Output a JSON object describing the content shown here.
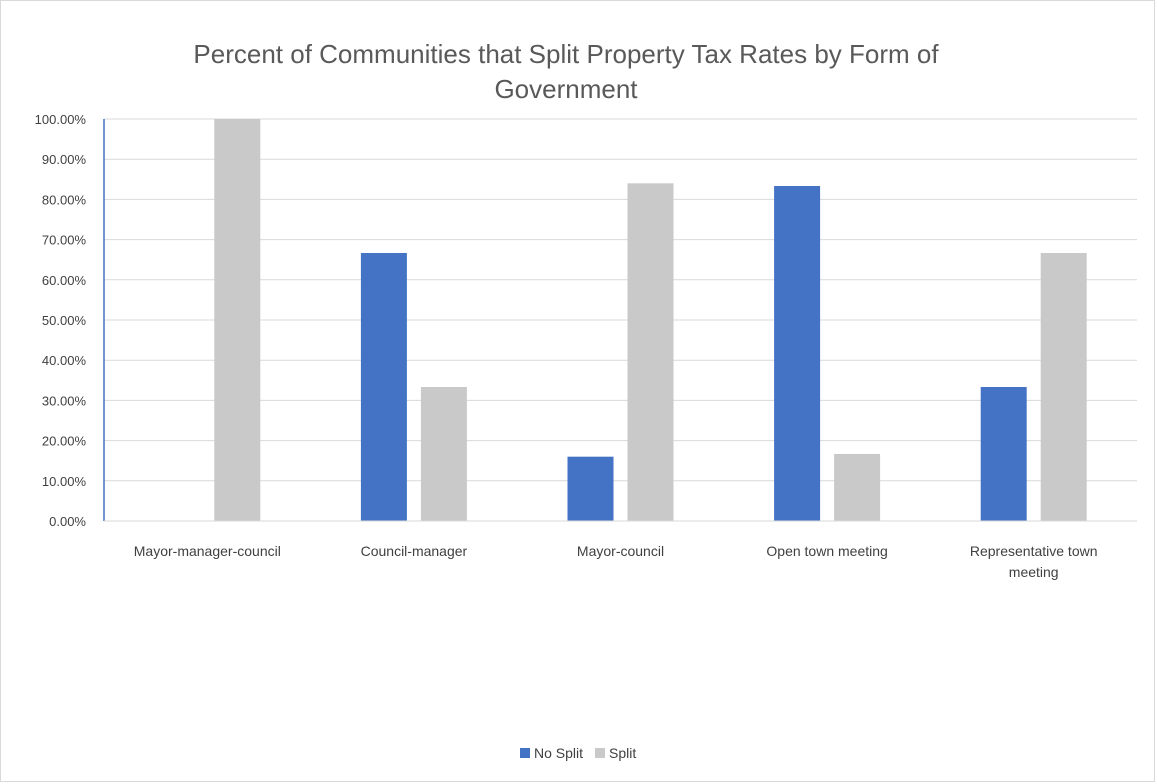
{
  "chart_data": {
    "type": "bar",
    "title": "Percent of Communities that Split Property Tax Rates by Form of Government",
    "title_lines": [
      "Percent of Communities that Split Property Tax Rates by Form of",
      "Government"
    ],
    "categories": [
      "Mayor-manager-council",
      "Council-manager",
      "Mayor-council",
      "Open town meeting",
      "Representative town meeting"
    ],
    "category_lines": [
      [
        "Mayor-manager-council"
      ],
      [
        "Council-manager"
      ],
      [
        "Mayor-council"
      ],
      [
        "Open town meeting"
      ],
      [
        "Representative town",
        "meeting"
      ]
    ],
    "series": [
      {
        "name": "No Split",
        "color": "#4472c4",
        "values": [
          0,
          0.6667,
          0.16,
          0.8333,
          0.3333
        ]
      },
      {
        "name": "Split",
        "color": "#c9c9c9",
        "values": [
          1.0,
          0.3333,
          0.84,
          0.1667,
          0.6667
        ]
      }
    ],
    "ylim": [
      0,
      1
    ],
    "yticks": [
      0,
      0.1,
      0.2,
      0.3,
      0.4,
      0.5,
      0.6,
      0.7,
      0.8,
      0.9,
      1.0
    ],
    "ytick_labels": [
      "0.00%",
      "10.00%",
      "20.00%",
      "30.00%",
      "40.00%",
      "50.00%",
      "60.00%",
      "70.00%",
      "80.00%",
      "90.00%",
      "100.00%"
    ],
    "xlabel": "",
    "ylabel": "",
    "grid": true,
    "legend_position": "bottom",
    "gridline_color": "#d9d9d9",
    "axis_color": "#4472c4"
  }
}
